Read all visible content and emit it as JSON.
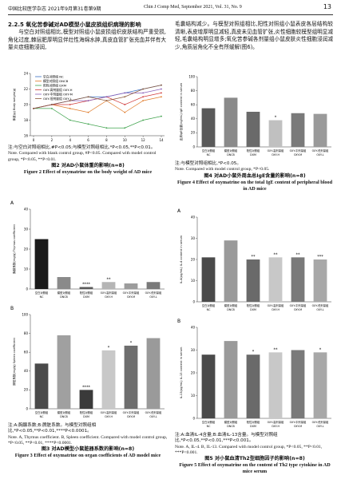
{
  "header": {
    "journal_cn": "中国比较医学杂志 2021年9月第31卷第9期",
    "journal_en": "Chin J Comp Med, September 2021, Vol. 31, No. 9",
    "page": "13"
  },
  "left": {
    "section_title": "2.2.5 氧化苦参碱对AD模型小鼠皮损组织病理的影响",
    "paragraph": "与空白对照组相比,模型对照组小鼠皮损组织皮肤结构严重受损,角化过度,棘层肥厚明显伴灶性海绵水肿,真皮血管扩张充血并伴有大量炎症细胞浸润,"
  },
  "right": {
    "paragraph": "毛囊结构减少。与模型对照组相比,阳性对照组小鼠表皮各层结构较清晰,表皮增厚明显减轻,真皮未见血管扩张,炎性细胞较模型组明显减轻,毛囊结构明显增多;氧化苦参碱各剂量组小鼠皮肤炎性细胞浸润减少,角质层角化不全有所缓解(图6)。"
  },
  "figures": [
    {
      "charts": [
        {
          "type": "line",
          "ylabel": "体重(g) Body weight(g)",
          "x": [
            0,
            2,
            4,
            6,
            8,
            10,
            12,
            14
          ],
          "xlim": [
            0,
            14
          ],
          "xticks": [
            0,
            2,
            4,
            6,
            8,
            10,
            12,
            14
          ],
          "ylim": [
            16,
            24
          ],
          "yticks": [
            16,
            18,
            20,
            22,
            24
          ],
          "series": [
            {
              "name": "空白对照组 NC",
              "color": "#3b6fc4",
              "values": [
                19.5,
                20,
                20.5,
                21,
                21,
                21.5,
                22,
                22.5
              ]
            },
            {
              "name": "模型对照组 DNCB",
              "color": "#e07b2a",
              "values": [
                19.5,
                20,
                19.5,
                19,
                20.5,
                19,
                20.5,
                21
              ]
            },
            {
              "name": "阳性对照组 DXM",
              "color": "#3fa34d",
              "values": [
                19.5,
                19.5,
                18,
                17.5,
                17,
                17,
                18,
                18.5
              ]
            },
            {
              "name": "OXY-高剂量组 OXY-H",
              "color": "#d0393a",
              "values": [
                19.5,
                20,
                20,
                20.5,
                21,
                20,
                21,
                21.5
              ]
            },
            {
              "name": "OXY-中剂量组 OXY-M",
              "color": "#8a5fb8",
              "values": [
                19.5,
                20,
                20.5,
                20.5,
                21,
                21.5,
                21.5,
                22
              ]
            },
            {
              "name": "OXY-低剂量组 OXY-L",
              "color": "#8c5a3c",
              "values": [
                19.5,
                20,
                20.5,
                21,
                20.5,
                21,
                22,
                22.5
              ]
            }
          ]
        }
      ],
      "note_cn": "注:与空白对照组相比,#P<0.05;与模型对照组相比,*P<0.05,**P<0.01。",
      "note_en": "Note. Compared with blank control group, #P<0.05. Compared with model control group, *P<0.05, **P<0.01.",
      "caption_cn": "图2 对AD小鼠体重的影响(n=8)",
      "caption_en": "Figure 2 Effect of oxymatrine on the body weight of AD mice"
    },
    {
      "charts": [
        {
          "type": "bar",
          "panel": "A",
          "ylabel": "胸腺系数(mg/g) Thymus coefficient",
          "categories": [
            "NC",
            "DNCB",
            "DXM",
            "OXY-H",
            "OXY-M",
            "OXY-L"
          ],
          "categories_cn": [
            "空白对照组",
            "模型对照组",
            "阳性对照组",
            "OXY-高剂量组",
            "OXY-中剂量组",
            "OXY-低剂量组"
          ],
          "colors": [
            "#1a1a1a",
            "#8a8a8a",
            "#5a5a5a",
            "#b5b5b5",
            "#9c9c9c",
            "#7a7a7a"
          ],
          "values": [
            25,
            6,
            1,
            3.5,
            2.8,
            3.5
          ],
          "annotations": [
            null,
            null,
            "****",
            "**",
            null,
            null
          ],
          "ylim": [
            0,
            40
          ],
          "yticks": [
            0,
            10,
            20,
            30,
            40
          ]
        },
        {
          "type": "bar",
          "panel": "B",
          "ylabel": "脾脏系数(mg/g) Spleen coefficient",
          "categories": [
            "NC",
            "DNCB",
            "DXM",
            "OXY-H",
            "OXY-M",
            "OXY-L"
          ],
          "categories_cn": [
            "空白对照组",
            "模型对照组",
            "阳性对照组",
            "OXY-高剂量组",
            "OXY-中剂量组",
            "OXY-低剂量组"
          ],
          "colors": [
            "#4a4a4a",
            "#a0a0a0",
            "#3a3a3a",
            "#c8c8c8",
            "#6e6e6e",
            "#9a9a9a"
          ],
          "values": [
            48,
            78,
            20,
            62,
            67,
            75
          ],
          "annotations": [
            null,
            null,
            "****",
            "*",
            "*",
            null
          ],
          "ylim": [
            0,
            100
          ],
          "yticks": [
            0,
            20,
            40,
            60,
            80,
            100
          ]
        }
      ],
      "note_cn": "注:A:胸腺系数;B:脾脏系数。与模型对照组相比,*P<0.05,**P<0.01,****P<0.0001。",
      "note_en": "Note. A, Thymus coefficient. B, Spleen coefficient. Compared with model control group, *P<0.05, **P<0.01, ****P<0.0001.",
      "caption_cn": "图3 对AD模型小鼠脏器系数的影响(n=8)",
      "caption_en": "Figure 3 Effect of oxymatrine on organ coefficients of AD model mice"
    },
    {
      "charts": [
        {
          "type": "bar",
          "ylabel": "血清IgE含量(ng/mL) IgE content in serum",
          "categories": [
            "NC",
            "DNCB",
            "DXM",
            "OXY-H",
            "OXY-M",
            "OXY-L"
          ],
          "categories_cn": [
            "空白对照组",
            "模型对照组",
            "阳性对照组",
            "OXY-高剂量组",
            "OXY-中剂量组",
            "OXY-低剂量组"
          ],
          "colors": [
            "#5a5a5a",
            "#8a8a8a",
            "#6a6a6a",
            "#c0c0c0",
            "#7a7a7a",
            "#9a9a9a"
          ],
          "values": [
            55,
            70,
            50,
            38,
            48,
            47
          ],
          "annotations": [
            null,
            null,
            null,
            "*",
            null,
            null
          ],
          "ylim": [
            0,
            100
          ],
          "yticks": [
            0,
            20,
            40,
            60,
            80,
            100
          ]
        }
      ],
      "note_cn": "注:与模型对照组相比,*P<0.05。",
      "note_en": "Note. Compared with model control group, *P<0.05.",
      "caption_cn": "图4 对AD小鼠外周血总IgE含量的影响(n=8)",
      "caption_en": "Figure 4 Effect of oxymatrine on the total IgE content of peripheral blood in AD mice"
    },
    {
      "charts": [
        {
          "type": "bar",
          "panel": "A",
          "ylabel": "IL-4(pg/mL) IL-4 content in serum",
          "categories": [
            "NC",
            "DNCB",
            "DXM",
            "OXY-H",
            "OXY-M",
            "OXY-L"
          ],
          "categories_cn": [
            "空白对照组",
            "模型对照组",
            "阳性对照组",
            "OXY-高剂量组",
            "OXY-中剂量组",
            "OXY-低剂量组"
          ],
          "colors": [
            "#4a4a4a",
            "#9a9a9a",
            "#6a6a6a",
            "#c8c8c8",
            "#7a7a7a",
            "#a8a8a8"
          ],
          "values": [
            21,
            29,
            20,
            21,
            21,
            20
          ],
          "annotations": [
            null,
            null,
            "**",
            "**",
            "**",
            "***"
          ],
          "ylim": [
            0,
            40
          ],
          "yticks": [
            0,
            10,
            20,
            30,
            40
          ]
        },
        {
          "type": "bar",
          "panel": "B",
          "ylabel": "IL-13(pg/mL) IL-13 content in serum",
          "categories": [
            "NC",
            "DNCB",
            "DXM",
            "OXY-H",
            "OXY-M",
            "OXY-L"
          ],
          "categories_cn": [
            "空白对照组",
            "模型对照组",
            "阳性对照组",
            "OXY-高剂量组",
            "OXY-中剂量组",
            "OXY-低剂量组"
          ],
          "colors": [
            "#4a4a4a",
            "#9a9a9a",
            "#6a6a6a",
            "#c8c8c8",
            "#7a7a7a",
            "#a8a8a8"
          ],
          "values": [
            28,
            34,
            28,
            29,
            30,
            29
          ],
          "annotations": [
            null,
            null,
            "*",
            "**",
            null,
            "*"
          ],
          "ylim": [
            0,
            40
          ],
          "yticks": [
            0,
            10,
            20,
            30,
            40
          ]
        }
      ],
      "note_cn": "注:A:血清IL-4含量;B:血清IL-13含量。与模型对照组比,*P<0.05,**P<0.01,***P<0.001。",
      "note_en": "Note. A, IL-4. B, IL-13. Compared with model control group, *P<0.05, **P<0.01, ***P<0.001.",
      "caption_cn": "图5 对小鼠血清Th2型细胞因子的影响(n=8)",
      "caption_en": "Figure 5 Effect of oxymatrine on the content of Th2 type cytokine in AD mice serum"
    }
  ]
}
